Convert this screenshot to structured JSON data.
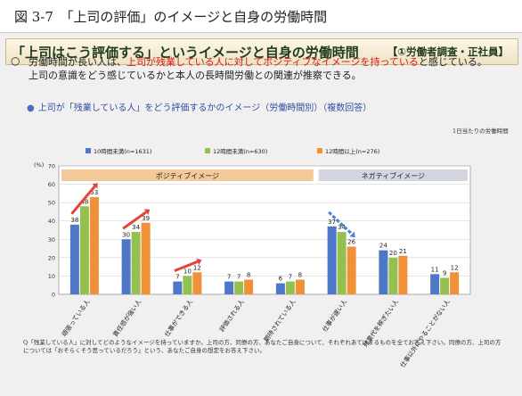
{
  "figure_caption": "図 3-7　「上司の評価」のイメージと自身の労働時間",
  "slide": {
    "title": "「上司はこう評価する」というイメージと自身の労働時間",
    "title_suffix": "【①労働者調査・正社員】",
    "intro_part1": "労働時間が長い人は、",
    "intro_highlight": "上司が残業している人に対してポジティブなイメージを持っている",
    "intro_part2": "と感じている。上司の意識をどう感じているかと本人の長時間労働との関連が推察できる。",
    "subheading": "上司が「残業している人」をどう評価するかのイメージ（労働時間別）（複数回答）",
    "unit_note": "1日当たりの労働時間",
    "footnote": "Q「残業している人」に対してどのようなイメージを持っていますか。上司の方、同僚の方、あなたご自身について、それぞれあてはまるものを全てお答え下さい。同僚の方、上司の方については「おそらくそう思っているだろう」という、あなたご自身の想定をお答え下さい。"
  },
  "chart_data": {
    "type": "bar",
    "ylabel": "(%)",
    "ylim": [
      0,
      70
    ],
    "yticks": [
      0,
      10,
      20,
      30,
      40,
      50,
      60,
      70
    ],
    "grid": true,
    "categories": [
      "頑張っている人",
      "責任感が強い人",
      "仕事ができる人",
      "評価される人",
      "期待されている人",
      "仕事が遅い人",
      "残業代を稼ぎたい人",
      "仕事以外にやることがない人"
    ],
    "series": [
      {
        "name": "10時間未満(n=1631)",
        "values": [
          38,
          30,
          7,
          7,
          6,
          37,
          24,
          11
        ]
      },
      {
        "name": "12時間未満(n=630)",
        "values": [
          48,
          34,
          10,
          7,
          7,
          34,
          20,
          9
        ]
      },
      {
        "name": "12時間以上(n=276)",
        "values": [
          53,
          39,
          12,
          8,
          8,
          26,
          21,
          12
        ]
      }
    ],
    "group_labels": [
      {
        "label": "ポジティブイメージ",
        "from": 0,
        "to": 4
      },
      {
        "label": "ネガティブイメージ",
        "from": 5,
        "to": 7
      }
    ],
    "legend_position": "top",
    "colors": {
      "series": [
        "#4f77c7",
        "#93c04f",
        "#f0913a"
      ],
      "positive_band": "#f4c99a",
      "negative_band": "#d3d6e1",
      "arrow_up": "#e0453b",
      "arrow_down": "#4f7fd0"
    }
  }
}
